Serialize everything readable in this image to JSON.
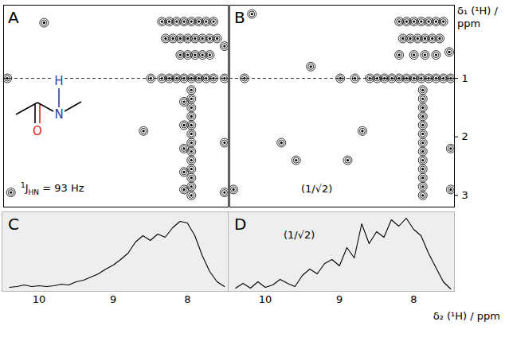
{
  "chart_data": [
    {
      "panel": "A",
      "type": "contour",
      "color": "#000000",
      "x": [
        8.35,
        8.25,
        8.15,
        8.05,
        7.95,
        7.85,
        7.75,
        7.65,
        8.3,
        8.2,
        8.1,
        8.0,
        7.9,
        7.8,
        7.7,
        7.6,
        8.1,
        8.0,
        7.9,
        7.8,
        7.7,
        8.35,
        8.25,
        8.15,
        8.05,
        7.95,
        7.85,
        7.75,
        7.65,
        7.95,
        7.95,
        7.95,
        7.95,
        7.95,
        7.95,
        7.95,
        7.95,
        7.95,
        7.95,
        7.95,
        7.95,
        7.95,
        8.05,
        8.05,
        8.05,
        8.05,
        8.05,
        10.45,
        10.4,
        9.95,
        7.5,
        7.5,
        7.5,
        7.5,
        8.5,
        8.6
      ],
      "y": [
        0.03,
        0.03,
        0.03,
        0.03,
        0.03,
        0.03,
        0.03,
        0.03,
        0.32,
        0.32,
        0.32,
        0.32,
        0.32,
        0.32,
        0.32,
        0.32,
        0.6,
        0.6,
        0.6,
        0.6,
        0.6,
        1.0,
        1.0,
        1.0,
        1.0,
        1.0,
        1.0,
        1.0,
        1.0,
        1.2,
        1.35,
        1.5,
        1.65,
        1.8,
        1.95,
        2.1,
        2.25,
        2.4,
        2.55,
        2.7,
        2.85,
        3.0,
        1.4,
        1.8,
        2.2,
        2.6,
        2.9,
        1.0,
        2.95,
        0.05,
        0.45,
        1.0,
        2.1,
        2.95,
        1.0,
        1.9
      ],
      "xlim": [
        10.5,
        7.45
      ],
      "ylim": [
        -0.25,
        3.2
      ],
      "tick_labels": false,
      "hline": 1,
      "annotation": {
        "superscript": "1",
        "text": "J",
        "subscript": "HN",
        "suffix": " = 93 Hz"
      },
      "molecule": {
        "atoms": [
          {
            "label": "H",
            "color": "#2e3f9e"
          },
          {
            "label": "N",
            "color": "#2e3f9e"
          },
          {
            "label": "O",
            "color": "#d42a1e"
          }
        ]
      }
    },
    {
      "panel": "B",
      "type": "contour",
      "color": "#000000",
      "x": [
        8.2,
        8.1,
        8.0,
        7.9,
        7.8,
        7.7,
        7.6,
        8.15,
        8.05,
        7.95,
        7.85,
        7.75,
        7.65,
        8.2,
        8.0,
        7.85,
        7.7,
        9.0,
        8.8,
        8.6,
        8.5,
        8.4,
        8.3,
        8.2,
        8.1,
        8.0,
        7.9,
        7.8,
        7.7,
        7.6,
        7.88,
        7.88,
        7.88,
        7.88,
        7.88,
        7.88,
        7.88,
        7.88,
        7.88,
        7.88,
        7.88,
        7.88,
        7.88,
        10.2,
        10.3,
        10.45,
        9.8,
        9.4,
        9.6,
        7.5,
        7.5,
        7.5,
        7.52,
        8.9,
        8.7
      ],
      "y": [
        0.03,
        0.03,
        0.03,
        0.03,
        0.03,
        0.03,
        0.03,
        0.32,
        0.32,
        0.32,
        0.32,
        0.32,
        0.32,
        0.6,
        0.6,
        0.6,
        0.6,
        1.0,
        1.0,
        1.0,
        1.0,
        1.0,
        1.0,
        1.0,
        1.0,
        1.0,
        1.0,
        1.0,
        1.0,
        1.0,
        1.2,
        1.35,
        1.5,
        1.65,
        1.8,
        1.95,
        2.1,
        2.25,
        2.4,
        2.55,
        2.7,
        2.85,
        3.0,
        -0.1,
        1.0,
        2.9,
        2.1,
        0.8,
        2.4,
        1.0,
        2.2,
        2.9,
        0.55,
        2.4,
        1.9
      ],
      "xlim": [
        10.5,
        7.45
      ],
      "ylim": [
        -0.25,
        3.2
      ],
      "yticks": [
        1,
        2,
        3
      ],
      "tick_labels": "y",
      "hline": 1,
      "ylabel": "δ₁ (¹H) / ppm",
      "annotation": "(1/√2)"
    },
    {
      "panel": "C",
      "type": "line",
      "color": "#000000",
      "x": [
        10.4,
        10.3,
        10.2,
        10.1,
        10.0,
        9.9,
        9.8,
        9.7,
        9.6,
        9.5,
        9.4,
        9.3,
        9.2,
        9.1,
        9.0,
        8.9,
        8.8,
        8.7,
        8.6,
        8.5,
        8.4,
        8.3,
        8.2,
        8.1,
        8.0,
        7.9,
        7.8,
        7.7,
        7.6,
        7.5
      ],
      "values": [
        0.05,
        0.06,
        0.08,
        0.06,
        0.07,
        0.06,
        0.07,
        0.09,
        0.08,
        0.12,
        0.14,
        0.18,
        0.22,
        0.28,
        0.33,
        0.4,
        0.48,
        0.62,
        0.7,
        0.64,
        0.72,
        0.68,
        0.8,
        0.88,
        0.86,
        0.7,
        0.45,
        0.25,
        0.12,
        0.06
      ],
      "xlim": [
        10.5,
        7.45
      ],
      "ylim": [
        0,
        1
      ],
      "xticks": [
        10,
        9,
        8
      ],
      "tick_labels": "x"
    },
    {
      "panel": "D",
      "type": "line",
      "color": "#000000",
      "x": [
        10.4,
        10.3,
        10.2,
        10.1,
        10.0,
        9.9,
        9.8,
        9.7,
        9.6,
        9.5,
        9.4,
        9.3,
        9.2,
        9.1,
        9.0,
        8.9,
        8.8,
        8.7,
        8.6,
        8.5,
        8.4,
        8.3,
        8.2,
        8.1,
        8.0,
        7.9,
        7.8,
        7.7,
        7.6,
        7.5
      ],
      "values": [
        0.04,
        0.1,
        0.04,
        0.12,
        0.05,
        0.08,
        0.15,
        0.1,
        0.06,
        0.2,
        0.28,
        0.22,
        0.35,
        0.4,
        0.32,
        0.55,
        0.42,
        0.85,
        0.6,
        0.75,
        0.68,
        0.9,
        0.82,
        0.92,
        0.78,
        0.7,
        0.48,
        0.3,
        0.12,
        0.03
      ],
      "xlim": [
        10.5,
        7.45
      ],
      "ylim": [
        0,
        1
      ],
      "xticks": [
        10,
        9,
        8
      ],
      "tick_labels": "x",
      "xlabel": "δ₂ (¹H) / ppm",
      "annotation": "(1/√2)"
    }
  ]
}
